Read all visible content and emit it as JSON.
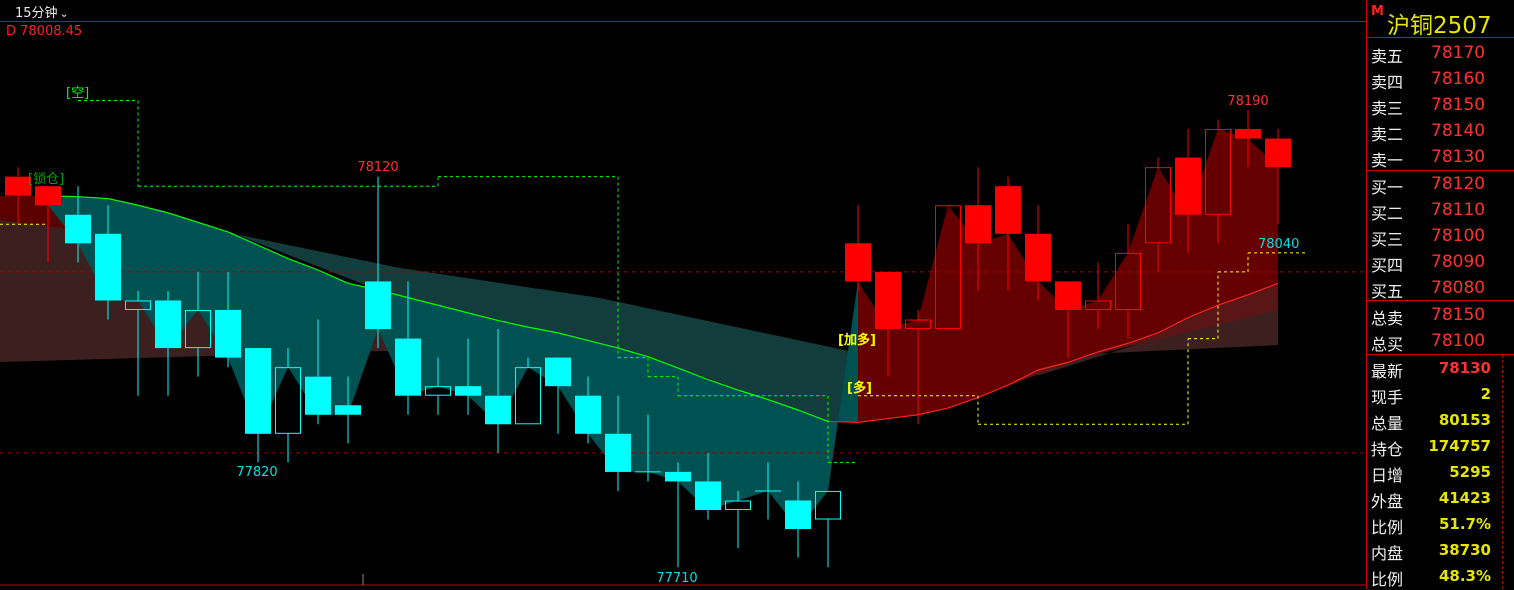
{
  "toolbar": {
    "period": "15分钟",
    "period_icon": "chevron-down-icon"
  },
  "indicator_readout": "D 78008.45",
  "panel": {
    "badge": "M",
    "symbol": "沪铜2507",
    "asks": [
      {
        "label": "卖五",
        "price": "78170"
      },
      {
        "label": "卖四",
        "price": "78160"
      },
      {
        "label": "卖三",
        "price": "78150"
      },
      {
        "label": "卖二",
        "price": "78140"
      },
      {
        "label": "卖一",
        "price": "78130"
      }
    ],
    "bids": [
      {
        "label": "买一",
        "price": "78120"
      },
      {
        "label": "买二",
        "price": "78110"
      },
      {
        "label": "买三",
        "price": "78100"
      },
      {
        "label": "买四",
        "price": "78090"
      },
      {
        "label": "买五",
        "price": "78080"
      }
    ],
    "totals": [
      {
        "label": "总卖",
        "value": "78150"
      },
      {
        "label": "总买",
        "value": "78100"
      }
    ],
    "stats": [
      {
        "label": "最新",
        "value": "78130"
      },
      {
        "label": "现手",
        "value": "2"
      },
      {
        "label": "总量",
        "value": "80153"
      },
      {
        "label": "持仓",
        "value": "174757"
      },
      {
        "label": "日增",
        "value": "5295"
      },
      {
        "label": "外盘",
        "value": "41423"
      },
      {
        "label": "比例",
        "value": "51.7%"
      },
      {
        "label": "内盘",
        "value": "38730"
      },
      {
        "label": "比例",
        "value": "48.3%"
      }
    ]
  },
  "chart_data": {
    "type": "candlestick",
    "grid": false,
    "colors": {
      "up_trend": "#ff0000",
      "down_trend": "#00ffff",
      "ma_down": "#00ff00",
      "ma_up": "#ff2020",
      "stop_short": "#00ff00",
      "stop_long": "#ffff00"
    },
    "candles": [
      {
        "o": 78120,
        "h": 78130,
        "l": 78070,
        "c": 78100,
        "trend": "up"
      },
      {
        "o": 78110,
        "h": 78110,
        "l": 78030,
        "c": 78090,
        "trend": "up"
      },
      {
        "o": 78080,
        "h": 78110,
        "l": 78030,
        "c": 78050,
        "trend": "down"
      },
      {
        "o": 78060,
        "h": 78090,
        "l": 77970,
        "c": 77990,
        "trend": "down"
      },
      {
        "o": 77980,
        "h": 78000,
        "l": 77890,
        "c": 77990,
        "trend": "down"
      },
      {
        "o": 77990,
        "h": 78000,
        "l": 77890,
        "c": 77940,
        "trend": "down"
      },
      {
        "o": 77940,
        "h": 78020,
        "l": 77910,
        "c": 77980,
        "trend": "down"
      },
      {
        "o": 77980,
        "h": 78020,
        "l": 77920,
        "c": 77930,
        "trend": "down"
      },
      {
        "o": 77940,
        "h": 77940,
        "l": 77820,
        "c": 77850,
        "trend": "down"
      },
      {
        "o": 77850,
        "h": 77940,
        "l": 77820,
        "c": 77920,
        "trend": "down"
      },
      {
        "o": 77910,
        "h": 77970,
        "l": 77860,
        "c": 77870,
        "trend": "down"
      },
      {
        "o": 77880,
        "h": 77910,
        "l": 77840,
        "c": 77870,
        "trend": "down"
      },
      {
        "o": 78010,
        "h": 78120,
        "l": 77940,
        "c": 77960,
        "trend": "down"
      },
      {
        "o": 77950,
        "h": 78010,
        "l": 77870,
        "c": 77890,
        "trend": "down"
      },
      {
        "o": 77890,
        "h": 77930,
        "l": 77870,
        "c": 77900,
        "trend": "down"
      },
      {
        "o": 77900,
        "h": 77950,
        "l": 77870,
        "c": 77890,
        "trend": "down"
      },
      {
        "o": 77890,
        "h": 77960,
        "l": 77830,
        "c": 77860,
        "trend": "down"
      },
      {
        "o": 77860,
        "h": 77930,
        "l": 77860,
        "c": 77920,
        "trend": "down"
      },
      {
        "o": 77930,
        "h": 77930,
        "l": 77850,
        "c": 77900,
        "trend": "down"
      },
      {
        "o": 77890,
        "h": 77910,
        "l": 77840,
        "c": 77850,
        "trend": "down"
      },
      {
        "o": 77850,
        "h": 77890,
        "l": 77790,
        "c": 77810,
        "trend": "down"
      },
      {
        "o": 77810,
        "h": 77870,
        "l": 77800,
        "c": 77810,
        "trend": "down"
      },
      {
        "o": 77810,
        "h": 77820,
        "l": 77710,
        "c": 77800,
        "trend": "down"
      },
      {
        "o": 77800,
        "h": 77830,
        "l": 77760,
        "c": 77770,
        "trend": "down"
      },
      {
        "o": 77770,
        "h": 77790,
        "l": 77730,
        "c": 77780,
        "trend": "down"
      },
      {
        "o": 77790,
        "h": 77820,
        "l": 77760,
        "c": 77790,
        "trend": "down"
      },
      {
        "o": 77780,
        "h": 77800,
        "l": 77720,
        "c": 77750,
        "trend": "down"
      },
      {
        "o": 77760,
        "h": 77790,
        "l": 77710,
        "c": 77790,
        "trend": "down"
      },
      {
        "o": 78050,
        "h": 78090,
        "l": 78000,
        "c": 78010,
        "trend": "up"
      },
      {
        "o": 78020,
        "h": 78020,
        "l": 77910,
        "c": 77960,
        "trend": "up"
      },
      {
        "o": 77960,
        "h": 77980,
        "l": 77860,
        "c": 77970,
        "trend": "up"
      },
      {
        "o": 77960,
        "h": 78090,
        "l": 77960,
        "c": 78090,
        "trend": "up"
      },
      {
        "o": 78090,
        "h": 78130,
        "l": 78000,
        "c": 78050,
        "trend": "up"
      },
      {
        "o": 78110,
        "h": 78120,
        "l": 78000,
        "c": 78060,
        "trend": "up"
      },
      {
        "o": 78060,
        "h": 78090,
        "l": 77990,
        "c": 78010,
        "trend": "up"
      },
      {
        "o": 78010,
        "h": 78010,
        "l": 77930,
        "c": 77980,
        "trend": "up"
      },
      {
        "o": 77980,
        "h": 78030,
        "l": 77960,
        "c": 77990,
        "trend": "up"
      },
      {
        "o": 77980,
        "h": 78070,
        "l": 77950,
        "c": 78040,
        "trend": "up"
      },
      {
        "o": 78050,
        "h": 78140,
        "l": 78020,
        "c": 78130,
        "trend": "up"
      },
      {
        "o": 78140,
        "h": 78170,
        "l": 78040,
        "c": 78080,
        "trend": "up"
      },
      {
        "o": 78080,
        "h": 78180,
        "l": 78050,
        "c": 78170,
        "trend": "up"
      },
      {
        "o": 78170,
        "h": 78190,
        "l": 78130,
        "c": 78160,
        "trend": "up"
      },
      {
        "o": 78160,
        "h": 78170,
        "l": 78070,
        "c": 78130,
        "trend": "up"
      }
    ],
    "ma": [
      null,
      78100,
      78099,
      78097,
      78090,
      78082,
      78072,
      78062,
      78048,
      78034,
      78022,
      78008,
      78001,
      77993,
      77985,
      77977,
      77969,
      77962,
      77956,
      77948,
      77940,
      77931,
      77919,
      77907,
      77896,
      77886,
      77875,
      77863,
      77862,
      77866,
      77870,
      77877,
      77888,
      77901,
      77917,
      77925,
      77936,
      77945,
      77956,
      77972,
      77985,
      77996,
      78008
    ],
    "stop_short": [
      null,
      null,
      78200,
      78200,
      78110,
      78110,
      78110,
      78110,
      78110,
      78110,
      78110,
      78110,
      78110,
      78110,
      78120,
      78120,
      78120,
      78120,
      78120,
      78120,
      77930,
      77910,
      77890,
      77890,
      77890,
      77890,
      77890,
      77820,
      77820,
      null,
      null,
      null,
      null,
      null,
      null,
      null,
      null,
      null,
      null,
      null,
      null,
      null,
      null
    ],
    "stop_long": [
      78070,
      78070,
      null,
      null,
      null,
      null,
      null,
      null,
      null,
      null,
      null,
      null,
      null,
      null,
      null,
      null,
      null,
      null,
      null,
      null,
      null,
      null,
      null,
      null,
      null,
      null,
      null,
      null,
      77890,
      77890,
      77890,
      77890,
      77860,
      77860,
      77860,
      77860,
      77860,
      77860,
      77860,
      77950,
      78020,
      78040,
      78040
    ],
    "reference_lines": [
      78020,
      77830
    ],
    "annotations": {
      "high_left": "78120",
      "low_left": "77820",
      "low": "77710",
      "high": "78190",
      "stop_value": "78040",
      "signal_short": "[空]",
      "signal_lock": "[锁仓]",
      "signal_add_long": "[加多]",
      "signal_long": "[多]"
    }
  }
}
